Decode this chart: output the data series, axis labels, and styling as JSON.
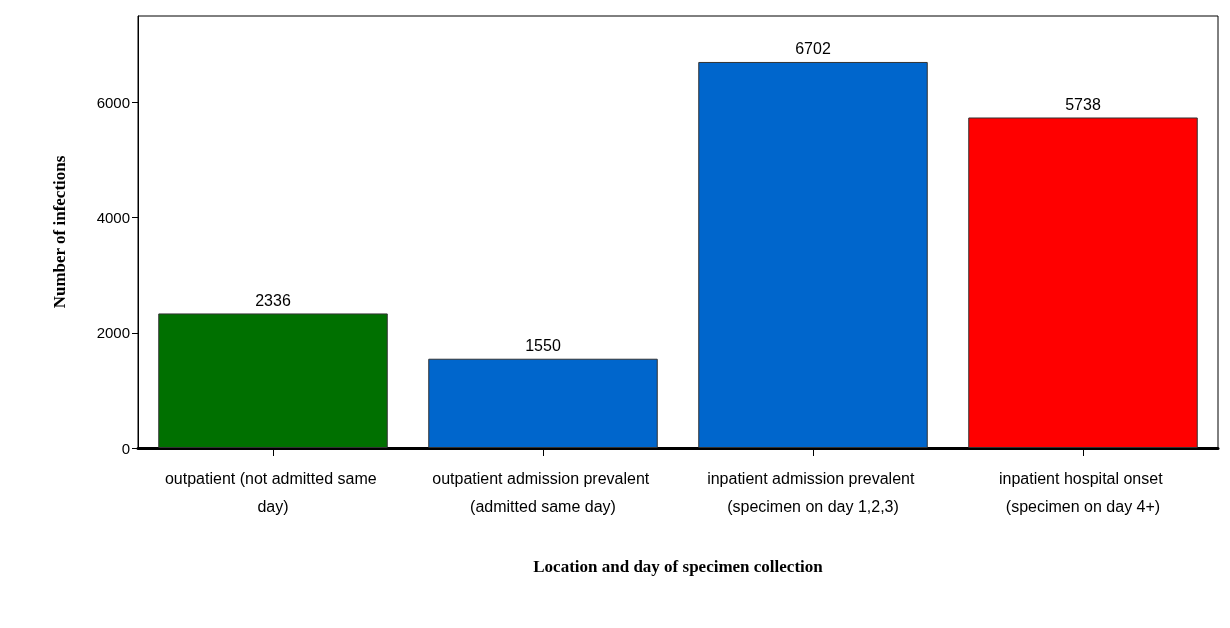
{
  "chart_data": {
    "type": "bar",
    "xlabel": "Location and day of specimen collection",
    "ylabel": "Number of infections",
    "categories": [
      "outpatient (not admitted same day)",
      "outpatient admission prevalent (admitted same day)",
      "inpatient admission prevalent (specimen on day 1,2,3)",
      "inpatient hospital onset (specimen on day 4+)"
    ],
    "values": [
      2336,
      1550,
      6702,
      5738
    ],
    "colors": [
      "#007000",
      "#0066cc",
      "#0066cc",
      "#ff0000"
    ],
    "ylim": [
      0,
      7500
    ],
    "yticks": [
      0,
      2000,
      4000,
      6000
    ],
    "data_labels": true
  }
}
